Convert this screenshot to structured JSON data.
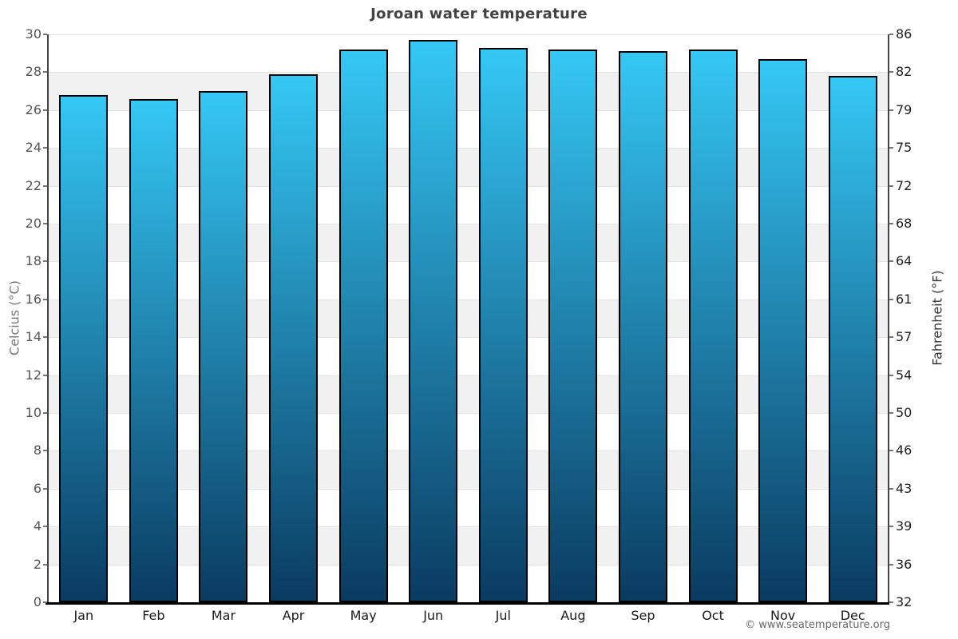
{
  "footer": "© www.seatemperature.org",
  "chart_data": {
    "type": "bar",
    "title": "Joroan water temperature",
    "categories": [
      "Jan",
      "Feb",
      "Mar",
      "Apr",
      "May",
      "Jun",
      "Jul",
      "Aug",
      "Sep",
      "Oct",
      "Nov",
      "Dec"
    ],
    "values": [
      26.8,
      26.6,
      27.0,
      27.9,
      29.2,
      29.7,
      29.3,
      29.2,
      29.1,
      29.2,
      28.7,
      27.8
    ],
    "ylabel_left": "Celcius (°C)",
    "ylabel_right": "Fahrenheit (°F)",
    "ylim": [
      0,
      30
    ],
    "celsius_ticks": [
      0,
      2,
      4,
      6,
      8,
      10,
      12,
      14,
      16,
      18,
      20,
      22,
      24,
      26,
      28,
      30
    ],
    "fahrenheit_ticks": [
      "32",
      "36",
      "39",
      "43",
      "46",
      "50",
      "54",
      "57",
      "61",
      "64",
      "68",
      "72",
      "75",
      "79",
      "82",
      "86"
    ],
    "legend": "none",
    "grid": true,
    "colors": {
      "bar_top": "#35c8f5",
      "bar_bottom": "#0a3b61",
      "bar_border": "#000000",
      "band": "#f1f1f1",
      "gridline": "#e3e3e3",
      "axis": "#444444",
      "bottom_axis": "#000000"
    }
  }
}
